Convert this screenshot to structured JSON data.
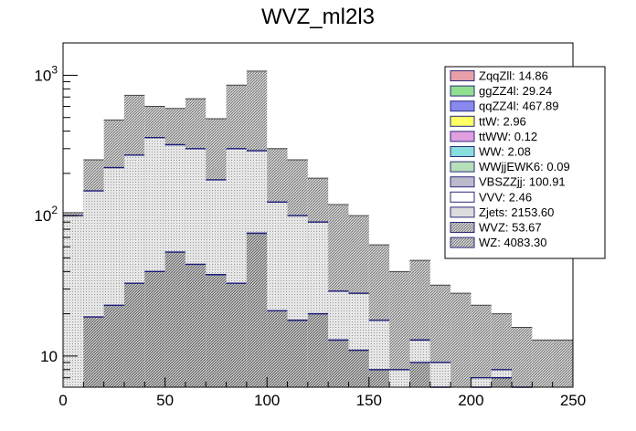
{
  "chart_data": {
    "type": "bar",
    "title": "WVZ_ml2l3",
    "xlabel": "",
    "ylabel": "",
    "xlim": [
      0,
      250
    ],
    "ylim_log": [
      6,
      1700
    ],
    "log_y": true,
    "bin_width": 10,
    "x_ticks": [
      {
        "value": 0,
        "label": "0"
      },
      {
        "value": 50,
        "label": "50"
      },
      {
        "value": 100,
        "label": "100"
      },
      {
        "value": 150,
        "label": "150"
      },
      {
        "value": 200,
        "label": "200"
      },
      {
        "value": 250,
        "label": "250"
      }
    ],
    "y_ticks": [
      {
        "value": 10,
        "base": "10",
        "exp": ""
      },
      {
        "value": 100,
        "base": "10",
        "exp": "2"
      },
      {
        "value": 1000,
        "base": "10",
        "exp": "3"
      }
    ],
    "bin_edges": [
      0,
      10,
      20,
      30,
      40,
      50,
      60,
      70,
      80,
      90,
      100,
      110,
      120,
      130,
      140,
      150,
      160,
      170,
      180,
      190,
      200,
      210,
      220,
      230,
      240,
      250
    ],
    "stack_totals": [
      105,
      250,
      480,
      720,
      600,
      580,
      680,
      490,
      850,
      1070,
      300,
      250,
      185,
      120,
      100,
      62,
      40,
      48,
      32,
      28,
      23,
      20,
      16,
      13,
      13
    ],
    "series": [
      {
        "name": "Zjets",
        "role": "middle-band",
        "values": [
          100,
          150,
          220,
          270,
          360,
          320,
          300,
          180,
          300,
          290,
          125,
          100,
          90,
          29,
          28,
          18,
          8,
          13,
          9,
          0,
          7,
          8,
          2,
          0,
          0
        ]
      },
      {
        "name": "WZ",
        "role": "lower-band",
        "values": [
          0,
          19,
          23,
          33,
          40,
          55,
          45,
          38,
          33,
          75,
          21,
          18,
          20,
          13,
          11,
          8,
          0,
          9,
          6,
          0,
          5,
          7,
          0,
          0,
          0
        ]
      }
    ],
    "legend": [
      {
        "label": "ZqqZll: 14.86",
        "color": "#e8a0a8",
        "hatch": false
      },
      {
        "label": "ggZZ4l: 29.24",
        "color": "#90e090",
        "hatch": false
      },
      {
        "label": "qqZZ4l: 467.89",
        "color": "#8888ee",
        "hatch": false
      },
      {
        "label": "ttW: 2.96",
        "color": "#ffff66",
        "hatch": false
      },
      {
        "label": "ttWW: 0.12",
        "color": "#e0a0e0",
        "hatch": false
      },
      {
        "label": "WW: 2.08",
        "color": "#88dddd",
        "hatch": false
      },
      {
        "label": "WWjjEWK6: 0.09",
        "color": "#b8e0b8",
        "hatch": false
      },
      {
        "label": "VBSZZjj: 100.91",
        "color": "#bbbbcc",
        "hatch": false
      },
      {
        "label": "VVV: 2.46",
        "color": "#ffffff",
        "hatch": false
      },
      {
        "label": "Zjets: 2153.60",
        "color": "#dcdcdc",
        "hatch": false
      },
      {
        "label": "WVZ: 53.67",
        "color": "#999999",
        "hatch": true
      },
      {
        "label": "WZ: 4083.30",
        "color": "#aaaaaa",
        "hatch": true
      }
    ],
    "legend_position": "top-right",
    "grid": false
  }
}
